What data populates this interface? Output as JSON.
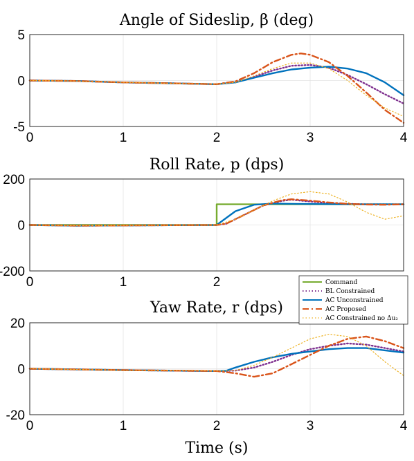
{
  "colors": {
    "command": "#77AC30",
    "bl_constrained": "#7E2F8E",
    "ac_unconstrained": "#0072BD",
    "ac_proposed": "#D95319",
    "ac_constrained_no_du2": "#EDB120"
  },
  "legend": {
    "placement": "between-middle-and-bottom-right",
    "entries": [
      {
        "name": "Command",
        "color": "#77AC30",
        "style": "solid"
      },
      {
        "name": "BL Constrained",
        "color": "#7E2F8E",
        "style": "dotted"
      },
      {
        "name": "AC Unconstrained",
        "color": "#0072BD",
        "style": "solid"
      },
      {
        "name": "AC Proposed",
        "color": "#D95319",
        "style": "dashdot"
      },
      {
        "name": "AC Constrained no Δu₂",
        "color": "#EDB120",
        "style": "dotted"
      }
    ]
  },
  "shared_xlabel": "Time (s)",
  "chart_data": [
    {
      "type": "line",
      "title": "Angle of Sideslip, β (deg)",
      "xlim": [
        0,
        4
      ],
      "ylim": [
        -5,
        5
      ],
      "xticks": [
        "0",
        "1",
        "2",
        "3",
        "4"
      ],
      "yticks": [
        {
          "v": 5,
          "label": "5"
        },
        {
          "v": 0,
          "label": "0"
        },
        {
          "v": -5,
          "label": "-5"
        }
      ],
      "grid": true,
      "series": [
        {
          "name": "BL Constrained",
          "x": [
            0,
            0.5,
            1,
            1.5,
            2,
            2.2,
            2.4,
            2.6,
            2.8,
            3,
            3.2,
            3.4,
            3.6,
            3.8,
            4
          ],
          "y": [
            0,
            -0.05,
            -0.2,
            -0.3,
            -0.4,
            -0.2,
            0.4,
            1.1,
            1.6,
            1.7,
            1.4,
            0.6,
            -0.4,
            -1.5,
            -2.5
          ]
        },
        {
          "name": "AC Unconstrained",
          "x": [
            0,
            0.5,
            1,
            1.5,
            2,
            2.2,
            2.4,
            2.6,
            2.8,
            3,
            3.2,
            3.4,
            3.6,
            3.8,
            4
          ],
          "y": [
            0,
            -0.05,
            -0.2,
            -0.3,
            -0.4,
            -0.2,
            0.3,
            0.8,
            1.2,
            1.4,
            1.5,
            1.3,
            0.8,
            -0.2,
            -1.6
          ]
        },
        {
          "name": "AC Proposed",
          "x": [
            0,
            0.5,
            1,
            1.5,
            2,
            2.2,
            2.4,
            2.6,
            2.8,
            2.9,
            3,
            3.2,
            3.4,
            3.6,
            3.8,
            4
          ],
          "y": [
            0,
            -0.05,
            -0.2,
            -0.3,
            -0.4,
            -0.1,
            0.8,
            2.0,
            2.8,
            2.95,
            2.8,
            2.0,
            0.5,
            -1.3,
            -3.2,
            -4.6
          ]
        },
        {
          "name": "AC Constrained no Δu₂",
          "x": [
            0,
            0.5,
            1,
            1.5,
            2,
            2.2,
            2.4,
            2.6,
            2.8,
            3,
            3.2,
            3.4,
            3.6,
            3.8,
            4
          ],
          "y": [
            0,
            -0.05,
            -0.2,
            -0.3,
            -0.4,
            -0.2,
            0.5,
            1.3,
            1.9,
            1.9,
            1.3,
            0.0,
            -1.6,
            -3.0,
            -3.9
          ]
        }
      ]
    },
    {
      "type": "line",
      "title": "Roll Rate, p (dps)",
      "xlim": [
        0,
        4
      ],
      "ylim": [
        -200,
        200
      ],
      "xticks": [
        "0",
        "1",
        "2",
        "3",
        "4"
      ],
      "yticks": [
        {
          "v": 200,
          "label": "200"
        },
        {
          "v": 0,
          "label": "0"
        },
        {
          "v": -200,
          "label": "-200"
        }
      ],
      "grid": true,
      "series": [
        {
          "name": "Command",
          "x": [
            0,
            2,
            2,
            4
          ],
          "y": [
            0,
            0,
            90,
            90
          ]
        },
        {
          "name": "BL Constrained",
          "x": [
            0,
            0.5,
            1,
            1.5,
            2,
            2.1,
            2.3,
            2.5,
            2.7,
            2.8,
            3,
            3.2,
            3.4,
            3.6,
            3.8,
            4
          ],
          "y": [
            0,
            -3,
            -2,
            -1,
            0,
            5,
            45,
            85,
            105,
            110,
            102,
            95,
            92,
            90,
            90,
            90
          ]
        },
        {
          "name": "AC Unconstrained",
          "x": [
            0,
            0.5,
            1,
            1.5,
            2,
            2.05,
            2.2,
            2.4,
            2.6,
            2.8,
            3,
            3.5,
            4
          ],
          "y": [
            0,
            -3,
            -2,
            -1,
            0,
            15,
            60,
            88,
            93,
            92,
            91,
            90,
            90
          ]
        },
        {
          "name": "AC Proposed",
          "x": [
            0,
            0.5,
            1,
            1.5,
            2,
            2.1,
            2.3,
            2.5,
            2.7,
            2.8,
            3,
            3.2,
            3.4,
            3.6,
            3.8,
            4
          ],
          "y": [
            0,
            -3,
            -2,
            -1,
            0,
            5,
            45,
            85,
            108,
            112,
            106,
            98,
            92,
            89,
            88,
            90
          ]
        },
        {
          "name": "AC Constrained no Δu₂",
          "x": [
            0,
            0.5,
            1,
            1.5,
            2,
            2.2,
            2.4,
            2.6,
            2.8,
            3,
            3.2,
            3.4,
            3.6,
            3.8,
            4
          ],
          "y": [
            0,
            -3,
            -2,
            -1,
            0,
            25,
            65,
            105,
            135,
            145,
            135,
            100,
            55,
            25,
            40
          ]
        }
      ]
    },
    {
      "type": "line",
      "title": "Yaw Rate, r (dps)",
      "xlim": [
        0,
        4
      ],
      "ylim": [
        -20,
        20
      ],
      "xticks": [
        "0",
        "1",
        "2",
        "3",
        "4"
      ],
      "yticks": [
        {
          "v": 20,
          "label": "20"
        },
        {
          "v": 0,
          "label": "0"
        },
        {
          "v": -20,
          "label": "-20"
        }
      ],
      "grid": true,
      "series": [
        {
          "name": "BL Constrained",
          "x": [
            0,
            0.5,
            1,
            1.5,
            2,
            2.2,
            2.4,
            2.6,
            2.8,
            3,
            3.2,
            3.4,
            3.6,
            3.8,
            4
          ],
          "y": [
            0,
            -0.3,
            -0.6,
            -0.8,
            -1,
            -0.8,
            0.5,
            3,
            6,
            8.5,
            10,
            11,
            10.5,
            9,
            7.5
          ]
        },
        {
          "name": "AC Unconstrained",
          "x": [
            0,
            0.5,
            1,
            1.5,
            2,
            2.1,
            2.2,
            2.4,
            2.6,
            2.8,
            3,
            3.2,
            3.4,
            3.6,
            3.8,
            4
          ],
          "y": [
            0,
            -0.3,
            -0.6,
            -0.8,
            -1,
            -0.9,
            0.5,
            3,
            5,
            6.5,
            7.5,
            8.5,
            9,
            9,
            8,
            7
          ]
        },
        {
          "name": "AC Proposed",
          "x": [
            0,
            0.5,
            1,
            1.5,
            2,
            2.2,
            2.4,
            2.6,
            2.8,
            3,
            3.2,
            3.4,
            3.6,
            3.8,
            4
          ],
          "y": [
            0,
            -0.3,
            -0.6,
            -0.8,
            -1,
            -2,
            -3.5,
            -2,
            2,
            6,
            10,
            13,
            14,
            12,
            9
          ]
        },
        {
          "name": "AC Constrained no Δu₂",
          "x": [
            0,
            0.5,
            1,
            1.5,
            2,
            2.2,
            2.4,
            2.6,
            2.8,
            3,
            3.2,
            3.4,
            3.6,
            3.8,
            4
          ],
          "y": [
            0,
            -0.3,
            -0.6,
            -0.8,
            -1,
            -0.8,
            1.5,
            5,
            9,
            13,
            15,
            14,
            10,
            3,
            -3
          ]
        }
      ]
    }
  ]
}
